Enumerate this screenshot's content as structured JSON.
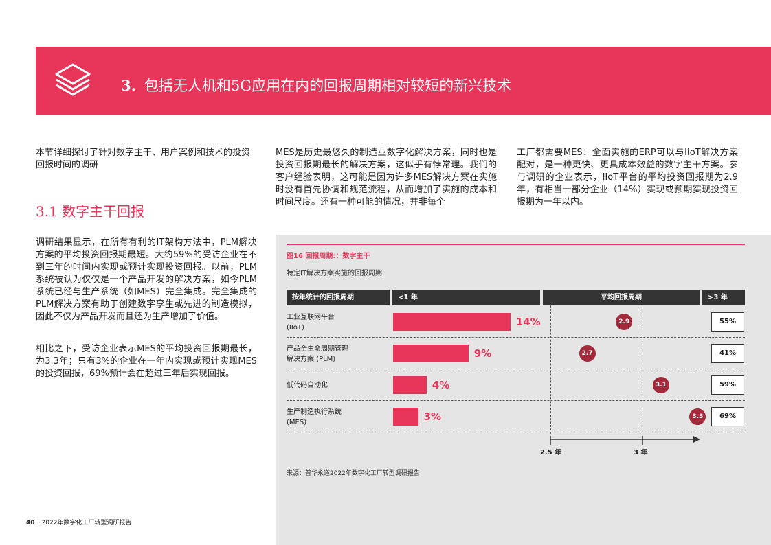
{
  "banner": {
    "number": "3.",
    "title": "包括无人机和5G应用在内的回报周期相对较短的新兴技术",
    "icon": "layers-icon",
    "color": "#e8355a"
  },
  "intro": "本节详细探讨了针对数字主干、用户案例和技术的投资回报时间的调研",
  "section": {
    "title": "3.1 数字主干回报",
    "para1": "调研结果显示，在所有有利的IT架构方法中，PLM解决方案的平均投资回报期最短。大约59%的受访企业在不到三年的时间内实现或预计实现投资回报。以前，PLM系统被认为仅仅是一个产品开发的解决方案，如今PLM系统已经与生产系统（如MES）完全集成。完全集成的PLM解决方案有助于创建数字孪生或先进的制造模拟，因此不仅为产品开发而且还为生产增加了价值。",
    "para2": "相比之下，受访企业表示MES的平均投资回报期最长，为3.3年；只有3%的企业在一年内实现或预计实现MES的投资回报，69%预计会在超过三年后实现回报。"
  },
  "col2": "MES是历史最悠久的制造业数字化解决方案，同时也是投资回报期最长的解决方案，这似乎有悖常理。我们的客户经验表明，这可能是因为许多MES解决方案在实施时没有首先协调和规范流程，从而增加了实施的成本和时间尺度。还有一种可能的情况，并非每个",
  "col3": "工厂都需要MES：全面实施的ERP可以与IIoT解决方案配对，是一种更快、更具成本效益的数字主干方案。参与调研的企业表示，IIoT平台的平均投资回报期为2.9年，有相当一部分企业（14%）实现或预期实现投资回报期为一年以内。",
  "figure": {
    "title": "图16  回报周期:：数字主干",
    "subtitle": "特定IT解决方案实施的回报周期",
    "headers": {
      "category": "按年统计的回报周期",
      "lt1": "<1 年",
      "avg": "平均回报周期",
      "gt3": ">3 年"
    },
    "source": "来源：普华永道2022年数字化工厂转型调研报告"
  },
  "chart_data": {
    "type": "bar",
    "title": "图16  回报周期:：数字主干",
    "categories": [
      "工业互联网平台 (IIoT)",
      "产品全生命周期管理解决方案 (PLM)",
      "低代码自动化",
      "生产制造执行系统 (MES)"
    ],
    "label_lines": [
      [
        "工业互联网平台",
        "(IIoT)"
      ],
      [
        "产品全生命周期管理",
        "解决方案 (PLM)"
      ],
      [
        "低代码自动化"
      ],
      [
        "生产制造执行系统",
        "(MES)"
      ]
    ],
    "series": [
      {
        "name": "<1 年",
        "values": [
          14,
          9,
          4,
          3
        ],
        "labels": [
          "14%",
          "9%",
          "4%",
          "3%"
        ]
      },
      {
        "name": "平均回报周期",
        "values": [
          2.9,
          2.7,
          3.1,
          3.3
        ],
        "labels": [
          "2.9",
          "2.7",
          "3.1",
          "3.3"
        ]
      },
      {
        "name": ">3 年",
        "values": [
          55,
          41,
          59,
          69
        ],
        "labels": [
          "55%",
          "41%",
          "59%",
          "69%"
        ]
      }
    ],
    "axis": {
      "ticks": [
        "2.5 年",
        "3 年"
      ],
      "tick_values": [
        2.5,
        3.0
      ]
    },
    "colors": {
      "bar": "#e8355a",
      "dot": "#a32a3a",
      "header": "#333333"
    }
  },
  "footer": {
    "page": "40",
    "text": "2022年数字化工厂转型调研报告"
  }
}
